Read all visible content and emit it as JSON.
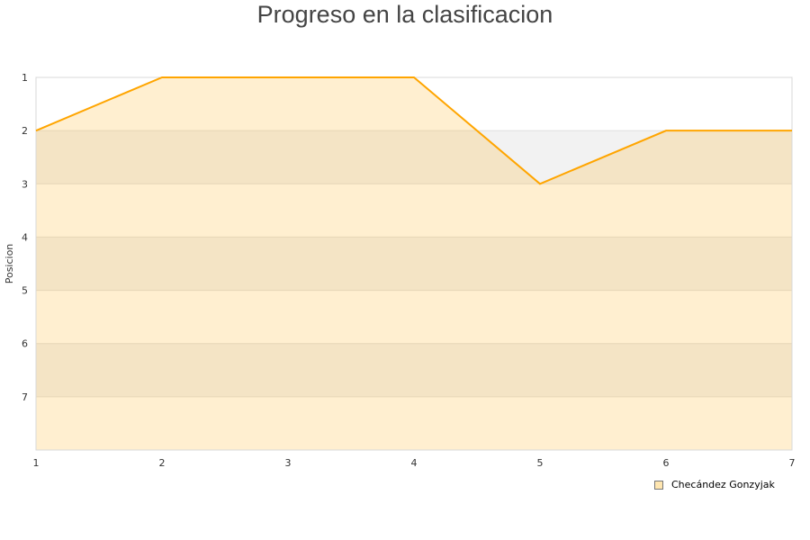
{
  "chart_data": {
    "type": "area",
    "title": "Progreso en la clasificacion",
    "xlabel": "",
    "ylabel": "Posicion",
    "x": [
      1,
      2,
      3,
      4,
      5,
      6,
      7
    ],
    "xlim": [
      1,
      7
    ],
    "ylim": [
      1,
      8
    ],
    "y_inverted": true,
    "yticks": [
      1,
      2,
      3,
      4,
      5,
      6,
      7
    ],
    "grid": true,
    "legend_placement": "bottom-right",
    "series": [
      {
        "name": "Checández Gonzyjak",
        "values": [
          2,
          1,
          1,
          1,
          3,
          2,
          2
        ],
        "color": "#ffa500"
      }
    ]
  }
}
